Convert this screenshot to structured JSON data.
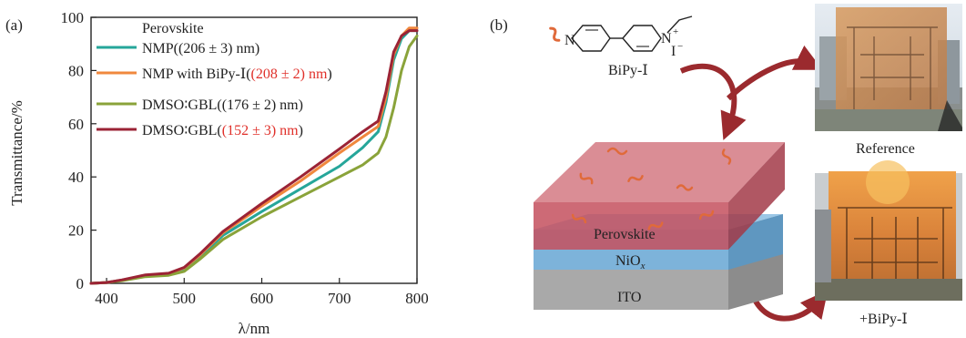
{
  "panel_a": {
    "label": "(a)"
  },
  "panel_b": {
    "label": "(b)",
    "molecule_label": "BiPy-Ⅰ",
    "molecule_atoms": {
      "n_left": "N",
      "n_right": "N",
      "n_plus": "+",
      "iodide": "I",
      "iodide_charge": "−"
    },
    "layers": {
      "perovskite": "Perovskite",
      "nio": "NiO",
      "nio_sub": "x",
      "ito": "ITO"
    },
    "photo_top_caption": "Reference",
    "photo_bottom_caption": "+BiPy-Ⅰ",
    "colors": {
      "perovskite_layer": "#c4505e",
      "nio_layer": "#7db3da",
      "ito_layer": "#a9a9a9",
      "arrow": "#9b2a2e",
      "molecule_squiggle": "#e06a3a"
    }
  },
  "chart_data": {
    "type": "line",
    "xlabel": "λ/nm",
    "ylabel": "Transmittance/%",
    "xlim": [
      380,
      800
    ],
    "ylim": [
      0,
      100
    ],
    "xticks": [
      400,
      500,
      600,
      700,
      800
    ],
    "yticks": [
      0,
      20,
      40,
      60,
      80,
      100
    ],
    "legend": {
      "title": "Perovskite",
      "placement": "top-left",
      "entries": [
        {
          "prefix": "NMP(",
          "value": "(206 ± 3) nm",
          "suffix": ")",
          "value_red": false
        },
        {
          "prefix": "NMP with BiPy-Ⅰ(",
          "value": "(208 ± 2) nm",
          "suffix": ")",
          "value_red": true
        },
        {
          "prefix": "DMSO∶GBL(",
          "value": "(176 ± 2) nm",
          "suffix": ")",
          "value_red": false
        },
        {
          "prefix": "DMSO∶GBL(",
          "value": "(152 ± 3) nm",
          "suffix": ")",
          "value_red": true
        }
      ]
    },
    "x": [
      380,
      400,
      420,
      450,
      480,
      500,
      520,
      550,
      600,
      650,
      700,
      730,
      750,
      760,
      770,
      780,
      790,
      800
    ],
    "series": [
      {
        "color": "#26a69a",
        "values": [
          0,
          0.3,
          1.2,
          3,
          3.6,
          5.5,
          10,
          18,
          27,
          35.5,
          44,
          51,
          57,
          68,
          84,
          92,
          95,
          95
        ]
      },
      {
        "color": "#f0883e",
        "values": [
          0,
          0.3,
          1.2,
          3,
          3.7,
          5.8,
          10.5,
          19,
          29,
          38.5,
          49,
          55,
          59,
          70,
          86,
          93,
          96,
          96
        ]
      },
      {
        "color": "#8aa33a",
        "values": [
          0,
          0.3,
          1,
          2.5,
          3,
          4.5,
          9,
          16.5,
          25,
          32.5,
          40,
          44.5,
          49,
          55,
          66,
          80,
          89,
          93
        ]
      },
      {
        "color": "#9b2335",
        "values": [
          0,
          0.3,
          1.3,
          3.2,
          3.8,
          6,
          11,
          19.5,
          30,
          40,
          50.5,
          57,
          61,
          72,
          87,
          93,
          95,
          95
        ]
      }
    ]
  }
}
